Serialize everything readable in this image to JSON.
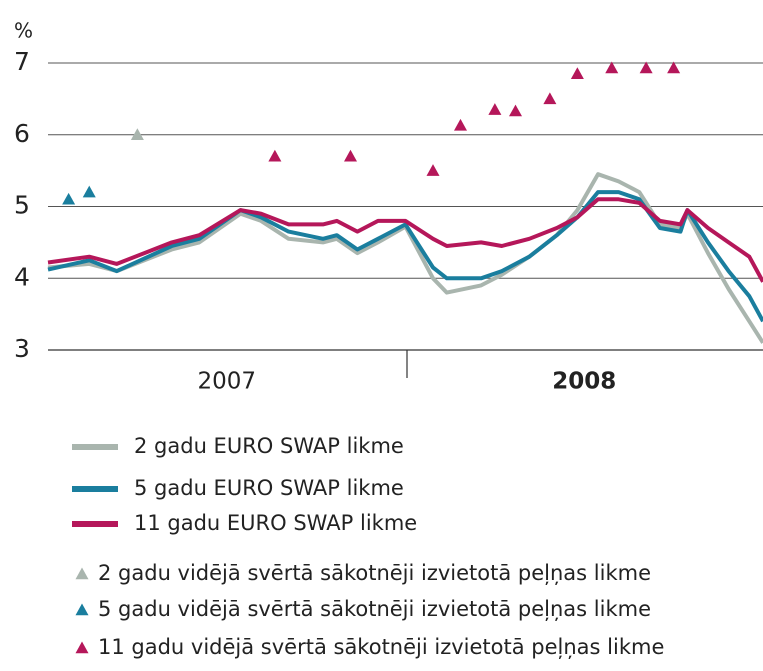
{
  "chart_data": {
    "type": "line",
    "y_unit": "%",
    "ylim": [
      3,
      7
    ],
    "yticks": [
      3,
      4,
      5,
      6,
      7
    ],
    "grid": true,
    "xlim": [
      0,
      104
    ],
    "x_labels": [
      "2007",
      "2008"
    ],
    "series": [
      {
        "name": "2 gadu EURO SWAP likme",
        "type": "line",
        "color": "#a9b5ae",
        "x": [
          0,
          6,
          10,
          18,
          22,
          28,
          31,
          35,
          40,
          42,
          45,
          48,
          52,
          56,
          58,
          63,
          66,
          70,
          74,
          77,
          80,
          83,
          86,
          89,
          92,
          93,
          96,
          99,
          102,
          104
        ],
        "values": [
          4.15,
          4.2,
          4.1,
          4.4,
          4.5,
          4.9,
          4.8,
          4.55,
          4.5,
          4.55,
          4.35,
          4.5,
          4.72,
          4.0,
          3.8,
          3.9,
          4.05,
          4.3,
          4.6,
          4.95,
          5.45,
          5.35,
          5.2,
          4.75,
          4.7,
          4.9,
          4.35,
          3.85,
          3.4,
          3.1
        ]
      },
      {
        "name": "5 gadu EURO SWAP likme",
        "type": "line",
        "color": "#1a7e9e",
        "x": [
          0,
          6,
          10,
          18,
          22,
          28,
          31,
          35,
          40,
          42,
          45,
          48,
          52,
          56,
          58,
          63,
          66,
          70,
          74,
          77,
          80,
          83,
          86,
          89,
          92,
          93,
          96,
          99,
          102,
          104
        ],
        "values": [
          4.12,
          4.25,
          4.1,
          4.45,
          4.55,
          4.95,
          4.85,
          4.65,
          4.55,
          4.6,
          4.4,
          4.55,
          4.75,
          4.15,
          4.0,
          4.0,
          4.1,
          4.3,
          4.6,
          4.85,
          5.2,
          5.2,
          5.1,
          4.7,
          4.65,
          4.95,
          4.5,
          4.1,
          3.75,
          3.4
        ]
      },
      {
        "name": "11 gadu EURO SWAP likme",
        "type": "line",
        "color": "#b5175a",
        "x": [
          0,
          6,
          10,
          18,
          22,
          28,
          31,
          35,
          40,
          42,
          45,
          48,
          52,
          56,
          58,
          63,
          66,
          70,
          74,
          77,
          80,
          83,
          86,
          89,
          92,
          93,
          96,
          99,
          102,
          104
        ],
        "values": [
          4.22,
          4.3,
          4.2,
          4.5,
          4.6,
          4.95,
          4.9,
          4.75,
          4.75,
          4.8,
          4.65,
          4.8,
          4.8,
          4.55,
          4.45,
          4.5,
          4.45,
          4.55,
          4.7,
          4.85,
          5.1,
          5.1,
          5.05,
          4.8,
          4.75,
          4.95,
          4.7,
          4.5,
          4.3,
          3.95
        ]
      },
      {
        "name": "2 gadu vidējā svērtā sākotnēji izvietotā peļņas likme",
        "type": "scatter",
        "color": "#a9b5ae",
        "x": [
          13
        ],
        "values": [
          6.0
        ]
      },
      {
        "name": "5 gadu vidējā svērtā sākotnēji izvietotā peļņas likme",
        "type": "scatter",
        "color": "#1a7e9e",
        "x": [
          3,
          6
        ],
        "values": [
          5.1,
          5.2
        ]
      },
      {
        "name": "11 gadu vidējā svērtā sākotnēji izvietotā peļņas likme",
        "type": "scatter",
        "color": "#b5175a",
        "x": [
          33,
          44,
          56,
          60,
          65,
          68,
          73,
          77,
          82,
          87,
          91
        ],
        "values": [
          5.7,
          5.7,
          5.5,
          6.13,
          6.35,
          6.33,
          6.5,
          6.85,
          6.93,
          6.93,
          6.93
        ]
      }
    ]
  }
}
